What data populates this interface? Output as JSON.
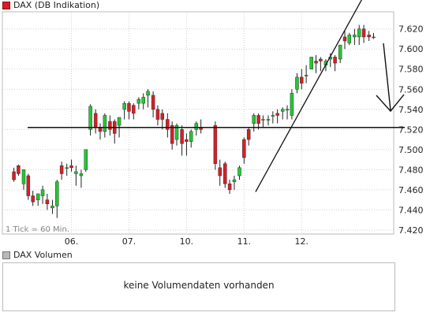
{
  "legend": {
    "main_label": "DAX (DB Indikation)",
    "volume_label": "DAX Volumen"
  },
  "volume": {
    "message": "keine Volumendaten vorhanden"
  },
  "tick_note": "1 Tick = 60 Min.",
  "colors": {
    "up": "#22c932",
    "down": "#d61f26",
    "wick": "#222222",
    "grid": "#cfcfcf",
    "line": "#111111"
  },
  "chart_data": {
    "type": "candlestick",
    "title": "DAX (DB Indikation)",
    "x_tick_labels": [
      "06.",
      "07.",
      "10.",
      "11.",
      "12."
    ],
    "y_tick_labels": [
      "7.420",
      "7.440",
      "7.460",
      "7.480",
      "7.500",
      "7.520",
      "7.540",
      "7.560",
      "7.580",
      "7.600",
      "7.620"
    ],
    "ylim": [
      7416,
      7637
    ],
    "grid": true,
    "horizontal_line": 7522,
    "trendline": [
      [
        4.2,
        7458
      ],
      [
        5.9,
        7639
      ]
    ],
    "candles": [
      [
        0.0,
        7478,
        7482,
        7470,
        7468
      ],
      [
        0.08,
        7484,
        7485,
        7476,
        7474
      ],
      [
        0.17,
        7466,
        7480,
        7480,
        7460
      ],
      [
        0.25,
        7474,
        7476,
        7454,
        7450
      ],
      [
        0.33,
        7454,
        7459,
        7448,
        7444
      ],
      [
        0.42,
        7450,
        7456,
        7456,
        7444
      ],
      [
        0.5,
        7454,
        7464,
        7460,
        7446
      ],
      [
        0.58,
        7450,
        7456,
        7446,
        7440
      ],
      [
        0.67,
        7442,
        7450,
        7444,
        7436
      ],
      [
        0.75,
        7444,
        7470,
        7468,
        7432
      ],
      [
        0.83,
        7484,
        7488,
        7476,
        7470
      ],
      [
        0.92,
        7482,
        7486,
        7482,
        7474
      ],
      [
        1.0,
        7484,
        7490,
        7482,
        7478
      ],
      [
        1.08,
        7476,
        7484,
        7478,
        7464
      ],
      [
        1.17,
        7474,
        7480,
        7476,
        7462
      ],
      [
        1.25,
        7480,
        7500,
        7500,
        7478
      ],
      [
        1.33,
        7520,
        7545,
        7543,
        7514
      ],
      [
        1.42,
        7536,
        7540,
        7522,
        7516
      ],
      [
        1.5,
        7522,
        7526,
        7518,
        7510
      ],
      [
        1.58,
        7518,
        7536,
        7534,
        7512
      ],
      [
        1.67,
        7528,
        7534,
        7520,
        7514
      ],
      [
        1.75,
        7528,
        7530,
        7516,
        7506
      ],
      [
        1.83,
        7524,
        7532,
        7532,
        7512
      ],
      [
        1.92,
        7540,
        7548,
        7546,
        7530
      ],
      [
        2.0,
        7546,
        7548,
        7538,
        7530
      ],
      [
        2.08,
        7544,
        7546,
        7536,
        7530
      ],
      [
        2.17,
        7546,
        7552,
        7550,
        7540
      ],
      [
        2.25,
        7546,
        7556,
        7552,
        7540
      ],
      [
        2.33,
        7554,
        7560,
        7558,
        7542
      ],
      [
        2.42,
        7554,
        7558,
        7540,
        7532
      ],
      [
        2.5,
        7540,
        7544,
        7530,
        7524
      ],
      [
        2.58,
        7536,
        7540,
        7530,
        7520
      ],
      [
        2.67,
        7530,
        7536,
        7520,
        7512
      ],
      [
        2.75,
        7524,
        7528,
        7506,
        7500
      ],
      [
        2.83,
        7510,
        7526,
        7524,
        7504
      ],
      [
        2.92,
        7520,
        7524,
        7506,
        7494
      ],
      [
        3.0,
        7510,
        7516,
        7508,
        7494
      ],
      [
        3.08,
        7508,
        7520,
        7518,
        7502
      ],
      [
        3.17,
        7520,
        7528,
        7526,
        7514
      ],
      [
        3.25,
        7522,
        7530,
        7520,
        7516
      ],
      [
        3.5,
        7524,
        7528,
        7486,
        7480
      ],
      [
        3.58,
        7482,
        7490,
        7474,
        7464
      ],
      [
        3.67,
        7486,
        7488,
        7466,
        7462
      ],
      [
        3.75,
        7466,
        7470,
        7460,
        7456
      ],
      [
        3.83,
        7468,
        7474,
        7470,
        7460
      ],
      [
        3.92,
        7474,
        7484,
        7482,
        7470
      ],
      [
        4.0,
        7510,
        7512,
        7492,
        7486
      ],
      [
        4.08,
        7520,
        7522,
        7510,
        7504
      ],
      [
        4.17,
        7526,
        7536,
        7534,
        7518
      ],
      [
        4.25,
        7534,
        7536,
        7526,
        7520
      ],
      [
        4.33,
        7530,
        7534,
        7530,
        7522
      ],
      [
        4.42,
        7530,
        7534,
        7530,
        7524
      ],
      [
        4.5,
        7534,
        7538,
        7534,
        7526
      ],
      [
        4.58,
        7536,
        7540,
        7534,
        7526
      ],
      [
        4.67,
        7538,
        7542,
        7540,
        7530
      ],
      [
        4.75,
        7540,
        7544,
        7540,
        7530
      ],
      [
        4.83,
        7534,
        7560,
        7556,
        7530
      ],
      [
        4.92,
        7560,
        7576,
        7572,
        7556
      ],
      [
        5.0,
        7572,
        7580,
        7566,
        7560
      ],
      [
        5.08,
        7574,
        7584,
        7574,
        7566
      ],
      [
        5.17,
        7580,
        7592,
        7592,
        7580
      ],
      [
        5.25,
        7588,
        7594,
        7586,
        7576
      ],
      [
        5.33,
        7590,
        7592,
        7588,
        7578
      ],
      [
        5.42,
        7584,
        7590,
        7588,
        7578
      ],
      [
        5.5,
        7590,
        7596,
        7592,
        7582
      ],
      [
        5.58,
        7592,
        7594,
        7586,
        7578
      ],
      [
        5.67,
        7590,
        7604,
        7604,
        7586
      ],
      [
        5.75,
        7612,
        7618,
        7608,
        7600
      ],
      [
        5.83,
        7606,
        7616,
        7614,
        7604
      ],
      [
        5.92,
        7612,
        7620,
        7614,
        7604
      ],
      [
        6.0,
        7612,
        7624,
        7620,
        7604
      ],
      [
        6.08,
        7620,
        7624,
        7612,
        7606
      ],
      [
        6.17,
        7614,
        7618,
        7612,
        7608
      ],
      [
        6.25,
        7612,
        7616,
        7612,
        7610
      ]
    ]
  }
}
